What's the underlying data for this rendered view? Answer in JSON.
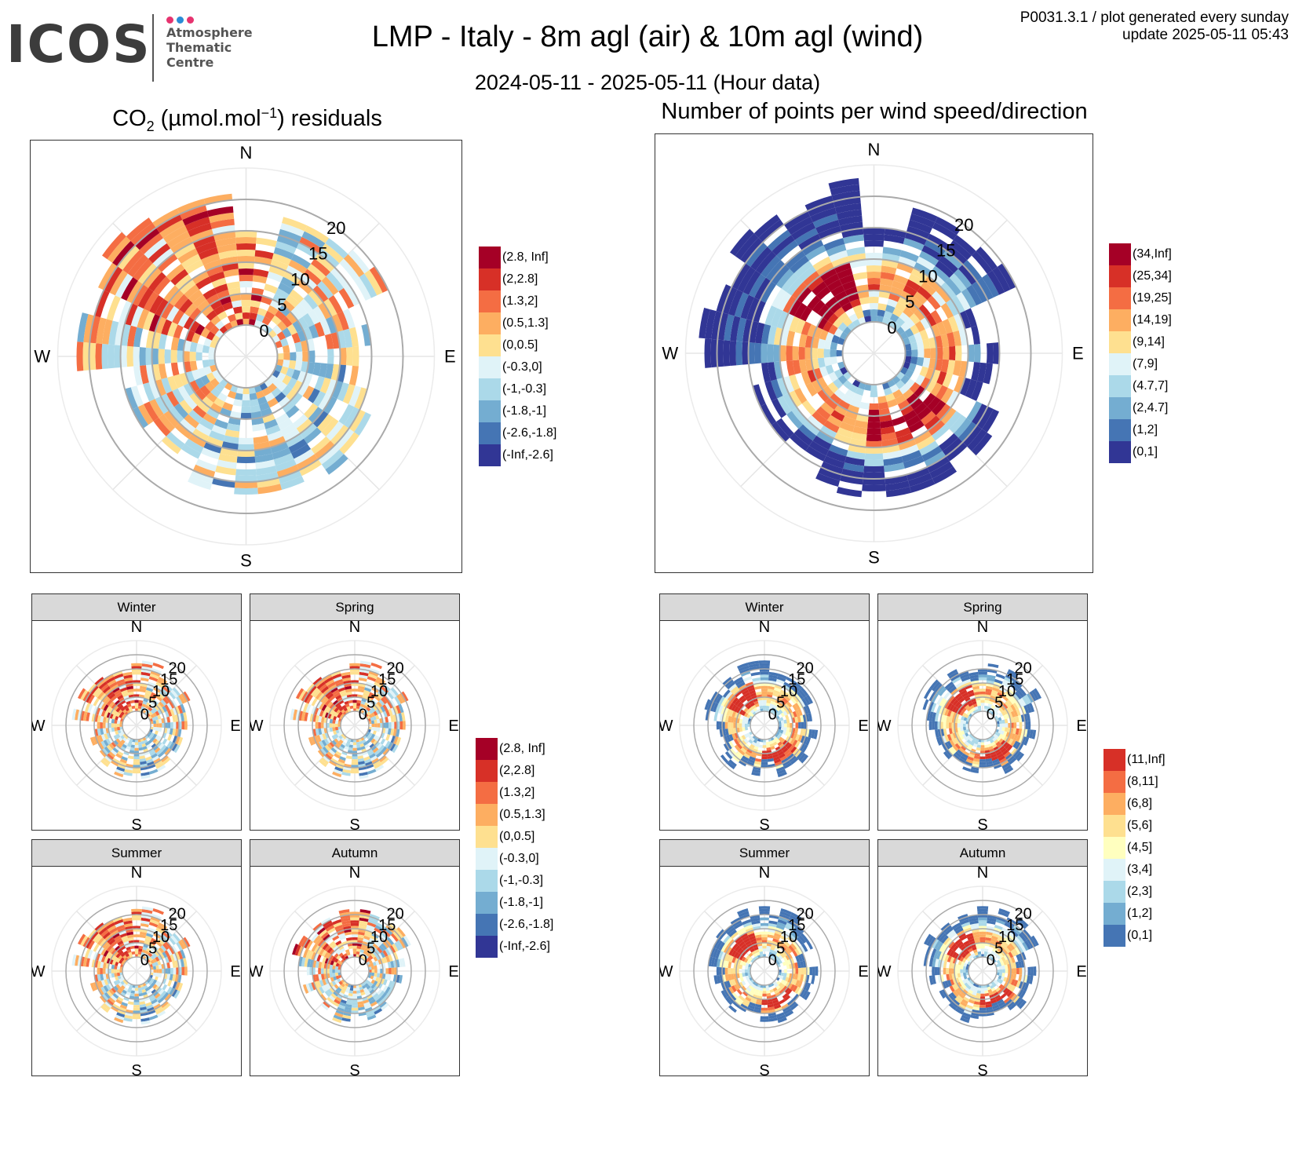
{
  "header": {
    "logo_word": "ICOS",
    "logo_lines": [
      "Atmosphere",
      "Thematic",
      "Centre"
    ],
    "logo_dot_colors": [
      "#e6336f",
      "#2a8cd6",
      "#e6336f"
    ],
    "title": "LMP - Italy - 8m agl (air) & 10m agl (wind)",
    "subtitle": "2024-05-11 - 2025-05-11 (Hour data)",
    "meta_line1": "P0031.3.1 / plot generated every sunday",
    "meta_line2": "update  2025-05-11 05:43"
  },
  "panels": {
    "left_title_main": "CO",
    "left_title_sub": "2",
    "left_title_rest": " (µmol.mol",
    "left_title_sup": "−1",
    "left_title_end": ") residuals",
    "right_title": "Number of points per wind speed/direction"
  },
  "seasons": [
    "Winter",
    "Spring",
    "Summer",
    "Autumn"
  ],
  "compass": {
    "n": "N",
    "e": "E",
    "s": "S",
    "w": "W"
  },
  "legends": {
    "residuals": {
      "labels": [
        "(2.8, Inf]",
        "(2,2.8]",
        "(1.3,2]",
        "(0.5,1.3]",
        "(0,0.5]",
        "(-0.3,0]",
        "(-1,-0.3]",
        "(-1.8,-1]",
        "(-2.6,-1.8]",
        "(-Inf,-2.6]"
      ],
      "colors": [
        "#a50026",
        "#d73027",
        "#f46d43",
        "#fdae61",
        "#fee090",
        "#e0f3f8",
        "#abd9e9",
        "#74add1",
        "#4575b4",
        "#313695"
      ]
    },
    "counts_total": {
      "labels": [
        "(34,Inf]",
        "(25,34]",
        "(19,25]",
        "(14,19]",
        "(9,14]",
        "(7,9]",
        "(4.7,7]",
        "(2,4.7]",
        "(1,2]",
        "(0,1]"
      ],
      "colors": [
        "#a50026",
        "#d73027",
        "#f46d43",
        "#fdae61",
        "#fee090",
        "#e0f3f8",
        "#abd9e9",
        "#74add1",
        "#4575b4",
        "#313695"
      ]
    },
    "counts_season": {
      "labels": [
        "(11,Inf]",
        "(8,11]",
        "(6,8]",
        "(5,6]",
        "(4,5]",
        "(3,4]",
        "(2,3]",
        "(1,2]",
        "(0,1]"
      ],
      "colors": [
        "#d73027",
        "#f46d43",
        "#fdae61",
        "#fee090",
        "#ffffbf",
        "#e0f3f8",
        "#abd9e9",
        "#74add1",
        "#4575b4"
      ]
    }
  },
  "chart_data": [
    {
      "type": "heatmap",
      "name": "residuals_all",
      "ring_labels": [
        0,
        5,
        10,
        15,
        20
      ],
      "ring_max": 25,
      "hole": 5,
      "direction_bins": 36,
      "speed_bin": 1,
      "palette": "residuals",
      "profile": "nw_heavy"
    },
    {
      "type": "heatmap",
      "name": "counts_all",
      "ring_labels": [
        0,
        5,
        10,
        15,
        20
      ],
      "ring_max": 25,
      "hole": 5,
      "direction_bins": 36,
      "speed_bin": 1,
      "palette": "counts_total",
      "profile": "counts"
    },
    {
      "type": "heatmap",
      "name": "residuals_winter",
      "ring_labels": [
        0,
        5,
        10,
        15,
        20
      ],
      "palette": "residuals",
      "profile": "winter"
    },
    {
      "type": "heatmap",
      "name": "residuals_spring",
      "ring_labels": [
        0,
        5,
        10,
        15,
        20
      ],
      "palette": "residuals",
      "profile": "spring"
    },
    {
      "type": "heatmap",
      "name": "residuals_summer",
      "ring_labels": [
        0,
        5,
        10,
        15,
        20
      ],
      "palette": "residuals",
      "profile": "summer"
    },
    {
      "type": "heatmap",
      "name": "residuals_autumn",
      "ring_labels": [
        0,
        5,
        10,
        15,
        20
      ],
      "palette": "residuals",
      "profile": "autumn"
    },
    {
      "type": "heatmap",
      "name": "counts_winter",
      "ring_labels": [
        0,
        5,
        10,
        15,
        20
      ],
      "palette": "counts_season",
      "profile": "winter"
    },
    {
      "type": "heatmap",
      "name": "counts_spring",
      "ring_labels": [
        0,
        5,
        10,
        15,
        20
      ],
      "palette": "counts_season",
      "profile": "spring"
    },
    {
      "type": "heatmap",
      "name": "counts_summer",
      "ring_labels": [
        0,
        5,
        10,
        15,
        20
      ],
      "palette": "counts_season",
      "profile": "summer"
    },
    {
      "type": "heatmap",
      "name": "counts_autumn",
      "ring_labels": [
        0,
        5,
        10,
        15,
        20
      ],
      "palette": "counts_season",
      "profile": "autumn"
    }
  ]
}
